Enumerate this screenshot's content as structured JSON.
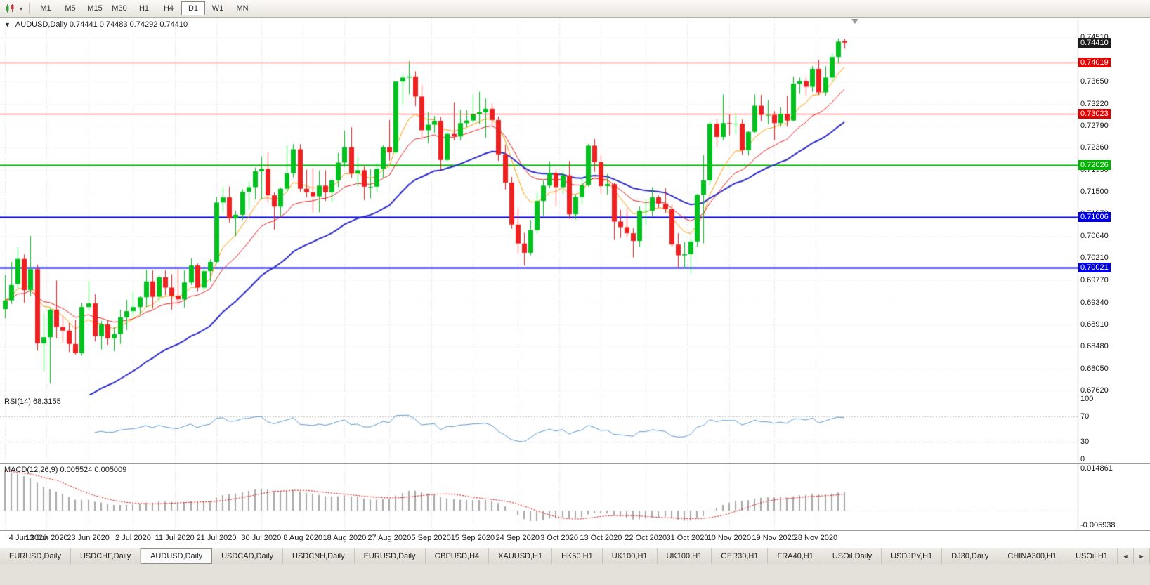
{
  "toolbar": {
    "chart_menu_caret": "▾",
    "periods": [
      {
        "label": "M1",
        "active": false
      },
      {
        "label": "M5",
        "active": false
      },
      {
        "label": "M15",
        "active": false
      },
      {
        "label": "M30",
        "active": false
      },
      {
        "label": "H1",
        "active": false
      },
      {
        "label": "H4",
        "active": false
      },
      {
        "label": "D1",
        "active": true
      },
      {
        "label": "W1",
        "active": false
      },
      {
        "label": "MN",
        "active": false
      }
    ]
  },
  "chart": {
    "collapse_triangle": "▼",
    "header": "AUDUSD,Daily  0.74441 0.74483 0.74292 0.74410"
  },
  "price_axis": {
    "ticks": [
      "0.74510",
      "0.73650",
      "0.73220",
      "0.72790",
      "0.72360",
      "0.71930",
      "0.71500",
      "0.71070",
      "0.70640",
      "0.70210",
      "0.69770",
      "0.69340",
      "0.68910",
      "0.68480",
      "0.68050",
      "0.67620"
    ],
    "current": {
      "label": "0.74410",
      "price": 0.7441,
      "bg": "#1c1c1c"
    }
  },
  "indicator_labels": {
    "rsi": "RSI(14) 68.3155",
    "macd": "MACD(12,26,9) 0.005524 0.005009"
  },
  "rsi_axis": [
    "100",
    "70",
    "30",
    "0"
  ],
  "macd_axis": {
    "top": "0.014861",
    "bottom": "-0.005938"
  },
  "tabs": {
    "scroll_left": "◄",
    "scroll_right": "►",
    "items": [
      {
        "label": "EURUSD,Daily",
        "active": false
      },
      {
        "label": "USDCHF,Daily",
        "active": false
      },
      {
        "label": "AUDUSD,Daily",
        "active": true
      },
      {
        "label": "USDCAD,Daily",
        "active": false
      },
      {
        "label": "USDCNH,Daily",
        "active": false
      },
      {
        "label": "EURUSD,Daily",
        "active": false
      },
      {
        "label": "GBPUSD,H4",
        "active": false
      },
      {
        "label": "XAUUSD,H1",
        "active": false
      },
      {
        "label": "HK50,H1",
        "active": false
      },
      {
        "label": "UK100,H1",
        "active": false
      },
      {
        "label": "UK100,H1",
        "active": false
      },
      {
        "label": "GER30,H1",
        "active": false
      },
      {
        "label": "FRA40,H1",
        "active": false
      },
      {
        "label": "USOil,Daily",
        "active": false
      },
      {
        "label": "USDJPY,H1",
        "active": false
      },
      {
        "label": "DJ30,Daily",
        "active": false
      },
      {
        "label": "CHINA300,H1",
        "active": false
      },
      {
        "label": "USOil,H1",
        "active": false
      }
    ]
  },
  "chart_data": {
    "type": "candlestick",
    "symbol": "AUDUSD",
    "timeframe": "Daily",
    "ohlc": {
      "open": 0.74441,
      "high": 0.74483,
      "low": 0.74292,
      "close": 0.7441
    },
    "ylim": [
      0.6754,
      0.749
    ],
    "colors": {
      "up": "#00c11e",
      "down": "#ee2020",
      "background": "#ffffff",
      "grid": "#d8d8d8"
    },
    "x_ticks": [
      {
        "label": "4 Jun 2020",
        "i": 0
      },
      {
        "label": "13 Jun 2020",
        "i": 6.5
      },
      {
        "label": "23 Jun 2020",
        "i": 13
      },
      {
        "label": "2 Jul 2020",
        "i": 20
      },
      {
        "label": "11 Jul 2020",
        "i": 26.5
      },
      {
        "label": "21 Jul 2020",
        "i": 33
      },
      {
        "label": "30 Jul 2020",
        "i": 40
      },
      {
        "label": "8 Aug 2020",
        "i": 46.5
      },
      {
        "label": "18 Aug 2020",
        "i": 53
      },
      {
        "label": "27 Aug 2020",
        "i": 60
      },
      {
        "label": "5 Sep 2020",
        "i": 66.5
      },
      {
        "label": "15 Sep 2020",
        "i": 73
      },
      {
        "label": "24 Sep 2020",
        "i": 80
      },
      {
        "label": "3 Oct 2020",
        "i": 86.5
      },
      {
        "label": "13 Oct 2020",
        "i": 93
      },
      {
        "label": "22 Oct 2020",
        "i": 100
      },
      {
        "label": "31 Oct 2020",
        "i": 106.5
      },
      {
        "label": "10 Nov 2020",
        "i": 113
      },
      {
        "label": "19 Nov 2020",
        "i": 120
      },
      {
        "label": "28 Nov 2020",
        "i": 126.5
      }
    ],
    "candles": [
      [
        0.6921,
        0.6988,
        0.6903,
        0.6938
      ],
      [
        0.6938,
        0.7013,
        0.6931,
        0.6968
      ],
      [
        0.697,
        0.7043,
        0.6961,
        0.7019
      ],
      [
        0.7019,
        0.7028,
        0.6933,
        0.6958
      ],
      [
        0.6958,
        0.7064,
        0.6946,
        0.6999
      ],
      [
        0.6999,
        0.7008,
        0.684,
        0.6854
      ],
      [
        0.6854,
        0.6912,
        0.68,
        0.6866
      ],
      [
        0.6866,
        0.6922,
        0.6776,
        0.692
      ],
      [
        0.692,
        0.6977,
        0.6864,
        0.6886
      ],
      [
        0.6886,
        0.6907,
        0.6855,
        0.6879
      ],
      [
        0.6879,
        0.6894,
        0.6837,
        0.6853
      ],
      [
        0.6853,
        0.69,
        0.6832,
        0.6835
      ],
      [
        0.6835,
        0.6933,
        0.683,
        0.6925
      ],
      [
        0.6925,
        0.6976,
        0.692,
        0.6932
      ],
      [
        0.6932,
        0.695,
        0.6858,
        0.6868
      ],
      [
        0.6868,
        0.6898,
        0.6842,
        0.6891
      ],
      [
        0.6891,
        0.6898,
        0.6851,
        0.6864
      ],
      [
        0.6864,
        0.6886,
        0.6839,
        0.6872
      ],
      [
        0.6872,
        0.692,
        0.6853,
        0.6905
      ],
      [
        0.6905,
        0.6939,
        0.688,
        0.6917
      ],
      [
        0.6917,
        0.6954,
        0.6905,
        0.6925
      ],
      [
        0.6925,
        0.6946,
        0.6911,
        0.6944
      ],
      [
        0.6944,
        0.6998,
        0.6925,
        0.6975
      ],
      [
        0.6975,
        0.6997,
        0.6922,
        0.6945
      ],
      [
        0.6945,
        0.6988,
        0.6935,
        0.6983
      ],
      [
        0.6983,
        0.6997,
        0.6948,
        0.6963
      ],
      [
        0.6963,
        0.6989,
        0.692,
        0.6947
      ],
      [
        0.6947,
        0.7,
        0.693,
        0.694
      ],
      [
        0.694,
        0.6997,
        0.6924,
        0.6973
      ],
      [
        0.6973,
        0.702,
        0.6968,
        0.7006
      ],
      [
        0.7006,
        0.701,
        0.6955,
        0.6963
      ],
      [
        0.6963,
        0.7,
        0.6958,
        0.6995
      ],
      [
        0.6995,
        0.7018,
        0.6975,
        0.7013
      ],
      [
        0.7013,
        0.714,
        0.701,
        0.7129
      ],
      [
        0.7129,
        0.716,
        0.711,
        0.7139
      ],
      [
        0.7139,
        0.716,
        0.709,
        0.7098
      ],
      [
        0.7098,
        0.7113,
        0.7063,
        0.7105
      ],
      [
        0.7105,
        0.7155,
        0.7095,
        0.715
      ],
      [
        0.715,
        0.717,
        0.7118,
        0.7159
      ],
      [
        0.7159,
        0.7197,
        0.7135,
        0.719
      ],
      [
        0.719,
        0.7219,
        0.7135,
        0.7195
      ],
      [
        0.7195,
        0.7227,
        0.7128,
        0.7143
      ],
      [
        0.7143,
        0.7149,
        0.7076,
        0.7121
      ],
      [
        0.7121,
        0.7158,
        0.7102,
        0.7156
      ],
      [
        0.7156,
        0.7241,
        0.7149,
        0.7186
      ],
      [
        0.7186,
        0.7243,
        0.7178,
        0.7233
      ],
      [
        0.7233,
        0.7243,
        0.715,
        0.7156
      ],
      [
        0.7156,
        0.7193,
        0.7139,
        0.7149
      ],
      [
        0.7149,
        0.7196,
        0.711,
        0.7141
      ],
      [
        0.7141,
        0.7191,
        0.711,
        0.7162
      ],
      [
        0.7162,
        0.7192,
        0.7132,
        0.7149
      ],
      [
        0.7149,
        0.7176,
        0.713,
        0.7172
      ],
      [
        0.7172,
        0.7226,
        0.7159,
        0.7207
      ],
      [
        0.7207,
        0.7269,
        0.7199,
        0.7237
      ],
      [
        0.7237,
        0.7276,
        0.7177,
        0.7186
      ],
      [
        0.7186,
        0.7219,
        0.716,
        0.7192
      ],
      [
        0.7192,
        0.72,
        0.7134,
        0.716
      ],
      [
        0.716,
        0.7194,
        0.7137,
        0.716
      ],
      [
        0.716,
        0.7207,
        0.715,
        0.7195
      ],
      [
        0.7195,
        0.7241,
        0.7177,
        0.7237
      ],
      [
        0.7237,
        0.729,
        0.7211,
        0.7227
      ],
      [
        0.7227,
        0.7366,
        0.7224,
        0.7365
      ],
      [
        0.7365,
        0.7381,
        0.732,
        0.7373
      ],
      [
        0.7373,
        0.7405,
        0.734,
        0.7375
      ],
      [
        0.7375,
        0.7385,
        0.7317,
        0.7336
      ],
      [
        0.7336,
        0.7359,
        0.7252,
        0.727
      ],
      [
        0.727,
        0.7305,
        0.7245,
        0.7281
      ],
      [
        0.7281,
        0.7298,
        0.7265,
        0.7288
      ],
      [
        0.7288,
        0.7296,
        0.7192,
        0.7212
      ],
      [
        0.7212,
        0.7268,
        0.7209,
        0.7263
      ],
      [
        0.7263,
        0.7325,
        0.725,
        0.7258
      ],
      [
        0.7258,
        0.731,
        0.725,
        0.7284
      ],
      [
        0.7284,
        0.7309,
        0.7276,
        0.7289
      ],
      [
        0.7289,
        0.734,
        0.7283,
        0.7301
      ],
      [
        0.7301,
        0.7345,
        0.7282,
        0.7305
      ],
      [
        0.7305,
        0.7332,
        0.7255,
        0.7312
      ],
      [
        0.7312,
        0.7322,
        0.7278,
        0.729
      ],
      [
        0.729,
        0.7297,
        0.721,
        0.7223
      ],
      [
        0.7223,
        0.7242,
        0.7154,
        0.7168
      ],
      [
        0.7168,
        0.7179,
        0.7078,
        0.7086
      ],
      [
        0.7086,
        0.7118,
        0.703,
        0.7049
      ],
      [
        0.7049,
        0.707,
        0.7006,
        0.7031
      ],
      [
        0.7031,
        0.7095,
        0.7026,
        0.7075
      ],
      [
        0.7075,
        0.7148,
        0.7069,
        0.7132
      ],
      [
        0.7132,
        0.7172,
        0.7103,
        0.7162
      ],
      [
        0.7162,
        0.7209,
        0.7157,
        0.7187
      ],
      [
        0.7187,
        0.7192,
        0.7122,
        0.7159
      ],
      [
        0.7159,
        0.7192,
        0.7146,
        0.7182
      ],
      [
        0.7182,
        0.721,
        0.7097,
        0.7106
      ],
      [
        0.7106,
        0.7144,
        0.7096,
        0.714
      ],
      [
        0.714,
        0.7175,
        0.7126,
        0.7163
      ],
      [
        0.7163,
        0.7243,
        0.716,
        0.724
      ],
      [
        0.724,
        0.7253,
        0.7189,
        0.7208
      ],
      [
        0.7208,
        0.7221,
        0.7146,
        0.7161
      ],
      [
        0.7161,
        0.7185,
        0.7144,
        0.7165
      ],
      [
        0.7165,
        0.7168,
        0.7056,
        0.7092
      ],
      [
        0.7092,
        0.7115,
        0.706,
        0.7081
      ],
      [
        0.7081,
        0.7118,
        0.7061,
        0.7069
      ],
      [
        0.7069,
        0.7079,
        0.7022,
        0.7054
      ],
      [
        0.7054,
        0.7121,
        0.7042,
        0.7113
      ],
      [
        0.7113,
        0.7135,
        0.7085,
        0.7113
      ],
      [
        0.7113,
        0.7159,
        0.7103,
        0.7139
      ],
      [
        0.7139,
        0.7143,
        0.7119,
        0.7127
      ],
      [
        0.7127,
        0.7157,
        0.7108,
        0.7116
      ],
      [
        0.7116,
        0.7125,
        0.7043,
        0.7047
      ],
      [
        0.7047,
        0.7069,
        0.7002,
        0.7026
      ],
      [
        0.7026,
        0.7052,
        0.7001,
        0.7028
      ],
      [
        0.7028,
        0.706,
        0.6991,
        0.7053
      ],
      [
        0.7053,
        0.7146,
        0.7042,
        0.7144
      ],
      [
        0.7144,
        0.7222,
        0.7049,
        0.7172
      ],
      [
        0.7172,
        0.7288,
        0.7164,
        0.7283
      ],
      [
        0.7283,
        0.7292,
        0.7237,
        0.7257
      ],
      [
        0.7257,
        0.734,
        0.725,
        0.7284
      ],
      [
        0.7284,
        0.7302,
        0.726,
        0.7283
      ],
      [
        0.7283,
        0.7303,
        0.7262,
        0.7283
      ],
      [
        0.7283,
        0.7291,
        0.7222,
        0.7231
      ],
      [
        0.7231,
        0.7268,
        0.7221,
        0.7267
      ],
      [
        0.7267,
        0.734,
        0.7265,
        0.7318
      ],
      [
        0.7318,
        0.7339,
        0.7288,
        0.73
      ],
      [
        0.73,
        0.7329,
        0.7282,
        0.73
      ],
      [
        0.73,
        0.7307,
        0.725,
        0.7284
      ],
      [
        0.7284,
        0.7315,
        0.7277,
        0.7302
      ],
      [
        0.7302,
        0.7338,
        0.7277,
        0.7289
      ],
      [
        0.7289,
        0.7375,
        0.7287,
        0.7361
      ],
      [
        0.7361,
        0.7373,
        0.7341,
        0.7366
      ],
      [
        0.7366,
        0.7374,
        0.7337,
        0.7355
      ],
      [
        0.7355,
        0.7395,
        0.7345,
        0.739
      ],
      [
        0.739,
        0.7408,
        0.7339,
        0.7344
      ],
      [
        0.7344,
        0.7395,
        0.7338,
        0.7373
      ],
      [
        0.7373,
        0.742,
        0.7365,
        0.7413
      ],
      [
        0.7413,
        0.7449,
        0.74,
        0.7443
      ],
      [
        0.74441,
        0.74483,
        0.74292,
        0.7441
      ]
    ],
    "overlays": [
      {
        "name": "fast-ma",
        "period": 8,
        "color": "#ff9900",
        "width": 1,
        "seed": null
      },
      {
        "name": "mid-ma",
        "period": 16,
        "color": "#ee2222",
        "width": 1,
        "seed": null
      },
      {
        "name": "slow-ma",
        "period": 34,
        "color": "#2d2dc8",
        "width": 2,
        "seed": 0.655
      }
    ],
    "hlines": [
      {
        "price": 0.74019,
        "label": "0.74019",
        "color": "#e00000",
        "width": 1
      },
      {
        "price": 0.73023,
        "label": "0.73023",
        "color": "#e00000",
        "width": 1
      },
      {
        "price": 0.72026,
        "label": "0.72026",
        "color": "#00b400",
        "width": 2
      },
      {
        "price": 0.71006,
        "label": "0.71006",
        "color": "#0000e0",
        "width": 2
      },
      {
        "price": 0.70021,
        "label": "0.70021",
        "color": "#0000e0",
        "width": 2
      }
    ],
    "indicators": {
      "rsi": {
        "period": 14,
        "value": 68.3155,
        "color": "#5b9bd5",
        "levels": [
          70,
          30
        ]
      },
      "macd": {
        "fast": 12,
        "slow": 26,
        "signal": 9,
        "value": 0.005524,
        "signal_value": 0.005009,
        "ylim": [
          -0.005938,
          0.014861
        ],
        "seed_slow": 0.6797,
        "bar_color": "#a8a8a8",
        "signal_color": "#e00000"
      }
    }
  }
}
